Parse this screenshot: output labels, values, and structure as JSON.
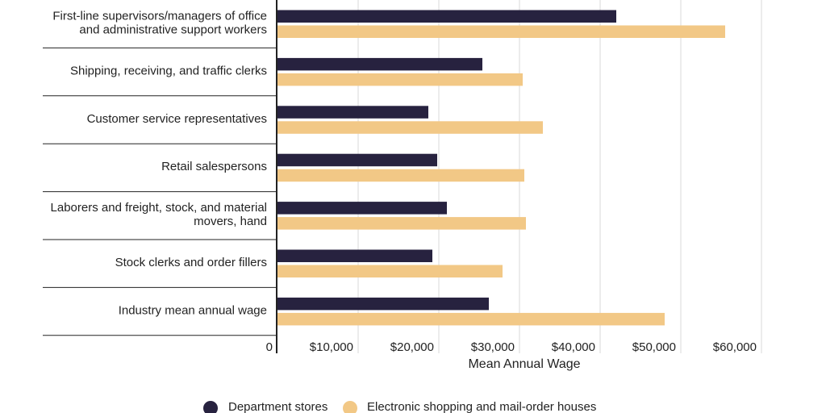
{
  "chart_data": {
    "type": "bar",
    "orientation": "horizontal",
    "title": "",
    "xlabel": "Mean Annual Wage",
    "ylabel": "",
    "xlim": [
      0,
      60000
    ],
    "x_ticks": [
      0,
      10000,
      20000,
      30000,
      40000,
      50000,
      60000
    ],
    "x_tick_labels": [
      "0",
      "$10,000",
      "$20,000",
      "$30,000",
      "$40,000",
      "$50,000",
      "$60,000"
    ],
    "grid": true,
    "legend_position": "bottom-center",
    "categories": [
      [
        "First-line supervisors/managers of office",
        "and administrative support workers"
      ],
      [
        "Shipping, receiving, and traffic clerks"
      ],
      [
        "Customer service representatives"
      ],
      [
        "Retail salespersons"
      ],
      [
        "Laborers and freight, stock, and material",
        "movers, hand"
      ],
      [
        "Stock clerks and order fillers"
      ],
      [
        "Industry mean annual wage"
      ]
    ],
    "series": [
      {
        "name": "Department stores",
        "color": "#27223f",
        "values": [
          42000,
          25400,
          18700,
          19800,
          21000,
          19200,
          26200
        ]
      },
      {
        "name": "Electronic shopping and mail-order houses",
        "color": "#f2c886",
        "values": [
          55500,
          30400,
          32900,
          30600,
          30800,
          27900,
          48000
        ]
      }
    ]
  }
}
